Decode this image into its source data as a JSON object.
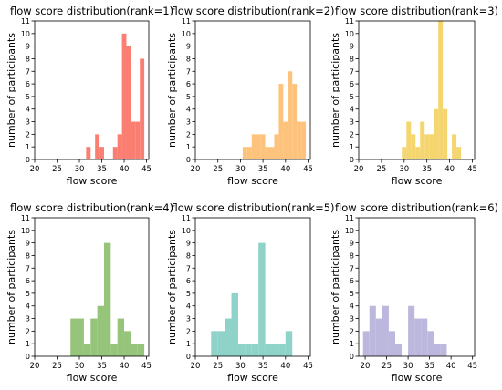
{
  "chart_data": [
    {
      "type": "bar",
      "title": "flow score distribution(rank=1)",
      "xlabel": "flow score",
      "ylabel": "number of participants",
      "xlim": [
        20,
        45.5
      ],
      "ylim": [
        0,
        11
      ],
      "xticks": [
        "20",
        "25",
        "30",
        "35",
        "40",
        "45"
      ],
      "yticks": [
        "0",
        "1",
        "2",
        "3",
        "4",
        "5",
        "6",
        "7",
        "8",
        "9",
        "10",
        "11"
      ],
      "color": "#fa7e72",
      "bins": [
        [
          31.5,
          32.5,
          1
        ],
        [
          33.5,
          34.5,
          2
        ],
        [
          34.5,
          35.5,
          1
        ],
        [
          37.5,
          38.5,
          1
        ],
        [
          38.5,
          39.5,
          2
        ],
        [
          39.5,
          40.5,
          10
        ],
        [
          40.5,
          41.5,
          9
        ],
        [
          41.5,
          42.5,
          3
        ],
        [
          42.5,
          43.5,
          3
        ],
        [
          43.5,
          44.5,
          8
        ]
      ]
    },
    {
      "type": "bar",
      "title": "flow score distribution(rank=2)",
      "xlabel": "flow score",
      "ylabel": "number of participants",
      "xlim": [
        20,
        45.5
      ],
      "ylim": [
        0,
        11
      ],
      "xticks": [
        "20",
        "25",
        "30",
        "35",
        "40",
        "45"
      ],
      "yticks": [
        "0",
        "1",
        "2",
        "3",
        "4",
        "5",
        "6",
        "7",
        "8",
        "9",
        "10",
        "11"
      ],
      "color": "#fdc27b",
      "bins": [
        [
          30.5,
          31.5,
          1
        ],
        [
          31.5,
          32.5,
          1
        ],
        [
          32.5,
          33.5,
          2
        ],
        [
          33.5,
          34.5,
          2
        ],
        [
          34.5,
          35.5,
          2
        ],
        [
          35.5,
          36.5,
          1
        ],
        [
          36.5,
          37.5,
          1
        ],
        [
          37.5,
          38.5,
          2
        ],
        [
          38.5,
          39.5,
          6
        ],
        [
          39.5,
          40.5,
          3
        ],
        [
          40.5,
          41.5,
          7
        ],
        [
          41.5,
          42.5,
          6
        ],
        [
          42.5,
          43.5,
          3
        ],
        [
          43.5,
          44.5,
          3
        ]
      ]
    },
    {
      "type": "bar",
      "title": "flow score distribution(rank=3)",
      "xlabel": "flow score",
      "ylabel": "number of participants",
      "xlim": [
        20,
        45.5
      ],
      "ylim": [
        0,
        11
      ],
      "xticks": [
        "20",
        "25",
        "30",
        "35",
        "40",
        "45"
      ],
      "yticks": [
        "0",
        "1",
        "2",
        "3",
        "4",
        "5",
        "6",
        "7",
        "8",
        "9",
        "10",
        "11"
      ],
      "color": "#f5d56e",
      "bins": [
        [
          29.5,
          30.5,
          1
        ],
        [
          30.5,
          31.5,
          3
        ],
        [
          31.5,
          32.5,
          2
        ],
        [
          32.5,
          33.5,
          1
        ],
        [
          33.5,
          34.5,
          3
        ],
        [
          34.5,
          35.5,
          2
        ],
        [
          35.5,
          36.5,
          2
        ],
        [
          36.5,
          37.5,
          4
        ],
        [
          37.5,
          38.5,
          11
        ],
        [
          38.5,
          39.5,
          4
        ],
        [
          40.5,
          41.5,
          2
        ],
        [
          41.5,
          42.5,
          1
        ]
      ]
    },
    {
      "type": "bar",
      "title": "flow score distribution(rank=4)",
      "xlabel": "flow score",
      "ylabel": "number of participants",
      "xlim": [
        20,
        45.5
      ],
      "ylim": [
        0,
        11
      ],
      "xticks": [
        "20",
        "25",
        "30",
        "35",
        "40",
        "45"
      ],
      "yticks": [
        "0",
        "1",
        "2",
        "3",
        "4",
        "5",
        "6",
        "7",
        "8",
        "9",
        "10",
        "11"
      ],
      "color": "#96c47a",
      "bins": [
        [
          28,
          31,
          3
        ],
        [
          31,
          32.5,
          1
        ],
        [
          32.5,
          34,
          3
        ],
        [
          34,
          35.5,
          4
        ],
        [
          35.5,
          37,
          9
        ],
        [
          37,
          38.5,
          1
        ],
        [
          38.5,
          40,
          3
        ],
        [
          40,
          41.5,
          2
        ],
        [
          41.5,
          43,
          1
        ],
        [
          43,
          44.5,
          1
        ]
      ]
    },
    {
      "type": "bar",
      "title": "flow score distribution(rank=5)",
      "xlabel": "flow score",
      "ylabel": "number of participants",
      "xlim": [
        20,
        45.5
      ],
      "ylim": [
        0,
        11
      ],
      "xticks": [
        "20",
        "25",
        "30",
        "35",
        "40",
        "45"
      ],
      "yticks": [
        "0",
        "1",
        "2",
        "3",
        "4",
        "5",
        "6",
        "7",
        "8",
        "9",
        "10",
        "11"
      ],
      "color": "#8ed2c8",
      "bins": [
        [
          23.5,
          25,
          2
        ],
        [
          25,
          26.5,
          2
        ],
        [
          26.5,
          28,
          3
        ],
        [
          28,
          29.5,
          5
        ],
        [
          29.5,
          31,
          1
        ],
        [
          31,
          32.5,
          1
        ],
        [
          32.5,
          34,
          1
        ],
        [
          34,
          35.5,
          9
        ],
        [
          35.5,
          37,
          1
        ],
        [
          37,
          38.5,
          1
        ],
        [
          38.5,
          40,
          1
        ],
        [
          40,
          41.5,
          2
        ]
      ]
    },
    {
      "type": "bar",
      "title": "flow score distribution(rank=6)",
      "xlabel": "flow score",
      "ylabel": "number of participants",
      "xlim": [
        18.5,
        45.5
      ],
      "ylim": [
        0,
        11
      ],
      "xticks": [
        "20",
        "25",
        "30",
        "35",
        "40",
        "45"
      ],
      "yticks": [
        "0",
        "1",
        "2",
        "3",
        "4",
        "5",
        "6",
        "7",
        "8",
        "9",
        "10",
        "11"
      ],
      "color": "#bcb8dd",
      "bins": [
        [
          19.5,
          21,
          2
        ],
        [
          21,
          22.5,
          4
        ],
        [
          22.5,
          24,
          3
        ],
        [
          24,
          25.5,
          4
        ],
        [
          25.5,
          27,
          2
        ],
        [
          27,
          28.5,
          1
        ],
        [
          30,
          31.5,
          4
        ],
        [
          31.5,
          33,
          3
        ],
        [
          33,
          34.5,
          3
        ],
        [
          34.5,
          36,
          2
        ],
        [
          36,
          37.5,
          1
        ],
        [
          37.5,
          39,
          1
        ]
      ]
    }
  ]
}
